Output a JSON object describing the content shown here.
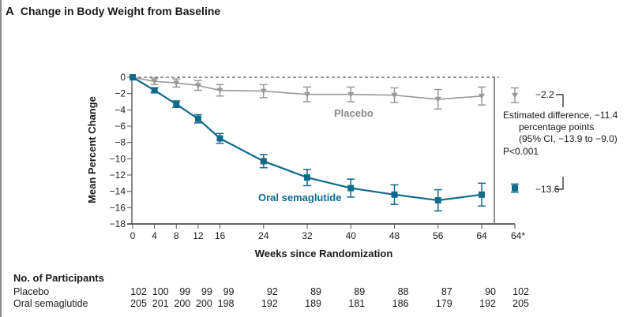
{
  "panel": "A",
  "title": "Change in Body Weight from Baseline",
  "chart_data": {
    "type": "line",
    "title": "Change in Body Weight from Baseline",
    "xlabel": "Weeks since Randomization",
    "ylabel": "Mean Percent Change",
    "x": [
      0,
      4,
      8,
      12,
      16,
      24,
      32,
      40,
      48,
      56,
      64
    ],
    "x_tick_labels": [
      "0",
      "4",
      "8",
      "12",
      "16",
      "24",
      "32",
      "40",
      "48",
      "56",
      "64",
      "64*"
    ],
    "y_ticks": [
      0,
      -2,
      -4,
      -6,
      -8,
      -10,
      -12,
      -14,
      -16,
      -18
    ],
    "y_tick_labels": [
      "0",
      "−2",
      "−4",
      "−6",
      "−8",
      "−10",
      "−12",
      "−14",
      "−16",
      "−18"
    ],
    "ylim": [
      -18,
      0
    ],
    "xlim": [
      0,
      64
    ],
    "reference_line": 0,
    "series": [
      {
        "name": "Placebo",
        "color": "#999999",
        "marker": "triangle-down",
        "values": [
          0,
          -0.5,
          -0.7,
          -1.0,
          -1.6,
          -1.7,
          -2.1,
          -2.1,
          -2.2,
          -2.7,
          -2.3
        ],
        "error": [
          0,
          0.4,
          0.5,
          0.6,
          0.7,
          0.8,
          0.9,
          0.9,
          0.9,
          1.2,
          1.1
        ]
      },
      {
        "name": "Oral semaglutide",
        "color": "#0f6a8c",
        "marker": "square",
        "values": [
          0,
          -1.6,
          -3.3,
          -5.1,
          -7.5,
          -10.3,
          -12.3,
          -13.6,
          -14.4,
          -15.1,
          -14.4
        ],
        "error": [
          0,
          0.3,
          0.4,
          0.5,
          0.6,
          0.8,
          1.0,
          1.1,
          1.2,
          1.3,
          1.4
        ]
      }
    ],
    "estimate_at_64star": [
      {
        "name": "Placebo",
        "value": -2.2,
        "label": "−2.2",
        "error": 0.9
      },
      {
        "name": "Oral semaglutide",
        "value": -13.6,
        "label": "−13.6",
        "error": 0.5
      }
    ],
    "annotation": {
      "line1": "Estimated difference, −11.4",
      "line2": "percentage points",
      "line3": "(95% CI, −13.9 to −9.0)",
      "line4": "P<0.001"
    },
    "series_labels": {
      "placebo": "Placebo",
      "semaglutide": "Oral semaglutide"
    }
  },
  "participants": {
    "title": "No. of Participants",
    "rows": [
      {
        "label": "Placebo",
        "values": [
          "102",
          "100",
          "99",
          "99",
          "99",
          "92",
          "89",
          "89",
          "88",
          "87",
          "90",
          "102"
        ]
      },
      {
        "label": "Oral semaglutide",
        "values": [
          "205",
          "201",
          "200",
          "200",
          "198",
          "192",
          "189",
          "181",
          "186",
          "179",
          "192",
          "205"
        ]
      }
    ]
  }
}
